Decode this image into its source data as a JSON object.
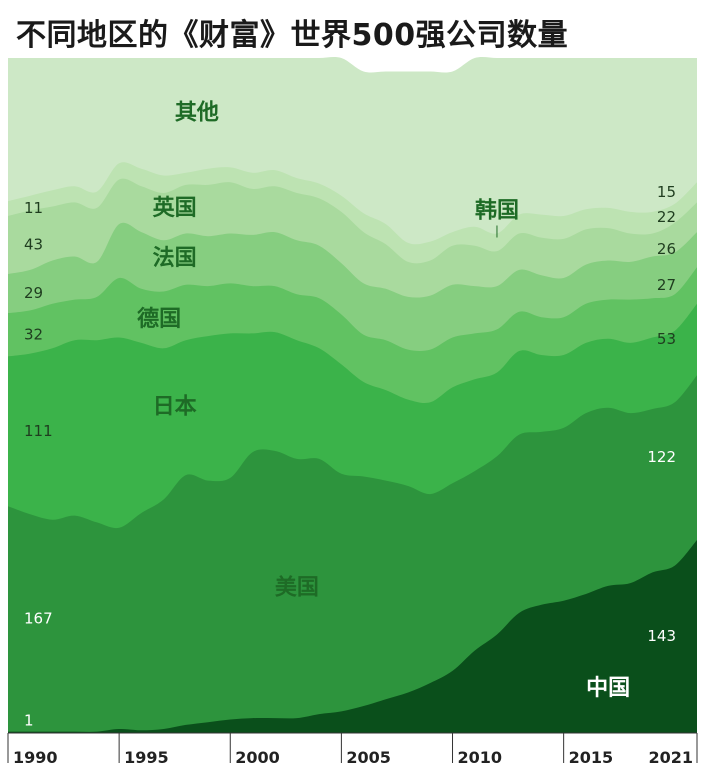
{
  "title": "不同地区的《财富》世界500强公司数量",
  "chart_data": {
    "type": "area",
    "stacked": true,
    "x": [
      1990,
      1991,
      1992,
      1993,
      1994,
      1995,
      1996,
      1997,
      1998,
      1999,
      2000,
      2001,
      2002,
      2003,
      2004,
      2005,
      2006,
      2007,
      2008,
      2009,
      2010,
      2011,
      2012,
      2013,
      2014,
      2015,
      2016,
      2017,
      2018,
      2019,
      2020,
      2021
    ],
    "xlim": [
      1990,
      2021
    ],
    "ylim": [
      0,
      500
    ],
    "grid": false,
    "legend": "inline labels",
    "series": [
      {
        "name": "中国",
        "color": "#0a4f1b",
        "values": [
          1,
          1,
          1,
          1,
          1,
          3,
          2,
          3,
          6,
          8,
          10,
          11,
          11,
          11,
          14,
          16,
          20,
          25,
          30,
          37,
          46,
          61,
          73,
          89,
          95,
          98,
          103,
          109,
          111,
          119,
          124,
          143
        ]
      },
      {
        "name": "美国",
        "color": "#2d943d",
        "values": [
          167,
          161,
          157,
          160,
          155,
          149,
          161,
          170,
          185,
          179,
          179,
          197,
          198,
          192,
          189,
          176,
          170,
          162,
          153,
          140,
          139,
          133,
          132,
          132,
          128,
          128,
          134,
          132,
          126,
          121,
          121,
          122
        ]
      },
      {
        "name": "日本",
        "color": "#3bb34a",
        "values": [
          111,
          119,
          127,
          130,
          135,
          141,
          126,
          112,
          100,
          107,
          107,
          88,
          88,
          88,
          82,
          81,
          70,
          67,
          64,
          68,
          71,
          68,
          62,
          62,
          57,
          54,
          52,
          51,
          52,
          53,
          53,
          53
        ]
      },
      {
        "name": "德国",
        "color": "#61c262",
        "values": [
          32,
          32,
          33,
          30,
          32,
          44,
          40,
          42,
          41,
          37,
          37,
          35,
          34,
          34,
          37,
          37,
          35,
          37,
          37,
          39,
          37,
          34,
          32,
          29,
          28,
          28,
          29,
          29,
          32,
          29,
          27,
          27
        ]
      },
      {
        "name": "法国",
        "color": "#86ce80",
        "values": [
          29,
          30,
          32,
          32,
          26,
          40,
          42,
          38,
          38,
          37,
          37,
          38,
          40,
          40,
          39,
          38,
          38,
          38,
          39,
          40,
          39,
          35,
          32,
          31,
          31,
          29,
          29,
          29,
          28,
          31,
          31,
          26
        ]
      },
      {
        "name": "英国",
        "color": "#a9da9e",
        "values": [
          43,
          44,
          40,
          40,
          40,
          33,
          34,
          35,
          36,
          38,
          38,
          34,
          34,
          35,
          35,
          38,
          38,
          33,
          26,
          26,
          29,
          30,
          26,
          27,
          28,
          29,
          26,
          24,
          21,
          17,
          22,
          22
        ]
      },
      {
        "name": "韩国",
        "color": "#bde3b2",
        "values": [
          11,
          11,
          12,
          12,
          12,
          12,
          13,
          13,
          9,
          12,
          11,
          12,
          12,
          11,
          11,
          12,
          14,
          15,
          14,
          14,
          10,
          14,
          13,
          14,
          17,
          17,
          15,
          15,
          16,
          16,
          14,
          15
        ]
      },
      {
        "name": "其他",
        "color": "#cde8c6",
        "values": [
          106,
          102,
          98,
          95,
          99,
          78,
          82,
          87,
          85,
          82,
          81,
          85,
          83,
          89,
          93,
          102,
          105,
          113,
          127,
          126,
          119,
          125,
          130,
          116,
          116,
          117,
          112,
          111,
          114,
          114,
          108,
          92
        ]
      }
    ],
    "tick_labels": [
      "1990",
      "1995",
      "2000",
      "2005",
      "2010",
      "2015",
      "2021"
    ],
    "tick_values": [
      1990,
      1995,
      2000,
      2005,
      2010,
      2015,
      2021
    ],
    "annotations": {
      "left_values": [
        {
          "series": "韩国",
          "text": "11"
        },
        {
          "series": "英国",
          "text": "43"
        },
        {
          "series": "法国",
          "text": "29"
        },
        {
          "series": "德国",
          "text": "32"
        },
        {
          "series": "日本",
          "text": "111"
        },
        {
          "series": "美国",
          "text": "167"
        },
        {
          "series": "中国",
          "text": "1"
        }
      ],
      "right_values": [
        {
          "series": "韩国",
          "text": "15"
        },
        {
          "series": "英国",
          "text": "22"
        },
        {
          "series": "法国",
          "text": "26"
        },
        {
          "series": "德国",
          "text": "27"
        },
        {
          "series": "日本",
          "text": "53"
        },
        {
          "series": "美国",
          "text": "122"
        },
        {
          "series": "中国",
          "text": "143"
        }
      ],
      "series_labels": [
        "其他",
        "韩国",
        "英国",
        "法国",
        "德国",
        "日本",
        "美国",
        "中国"
      ]
    }
  }
}
